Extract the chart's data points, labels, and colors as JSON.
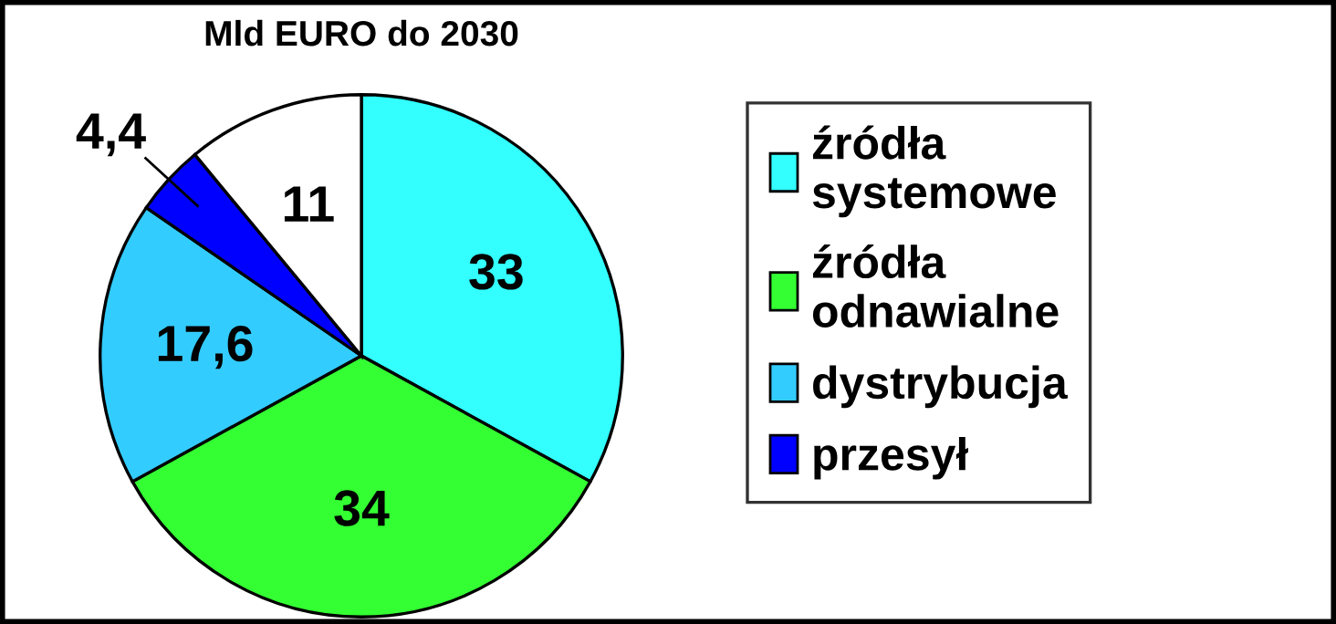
{
  "chart_data": {
    "type": "pie",
    "title": "Mld EURO do 2030",
    "categories": [
      "źródła systemowe",
      "źródła odnawialne",
      "dystrybucja",
      "przesył",
      null
    ],
    "values": [
      33,
      34,
      17.6,
      4.4,
      11
    ],
    "value_labels": [
      "33",
      "34",
      "17,6",
      "4,4",
      "11"
    ],
    "colors": [
      "#33ffff",
      "#33ff33",
      "#33ccff",
      "#0000ff",
      "#ffffff"
    ],
    "legend": "right"
  }
}
